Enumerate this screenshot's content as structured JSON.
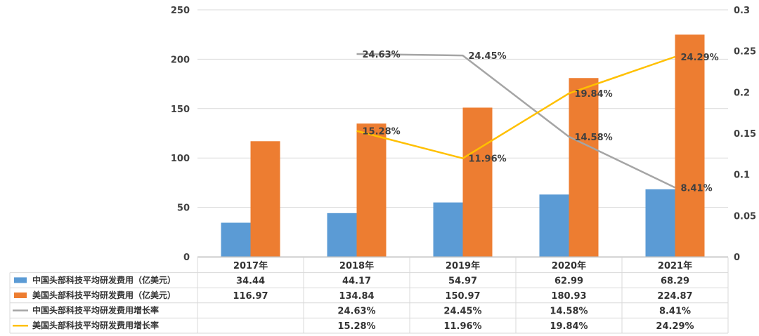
{
  "chart_data": {
    "type": "bar+line",
    "categories": [
      "2017年",
      "2018年",
      "2019年",
      "2020年",
      "2021年"
    ],
    "left_axis": {
      "ylim": [
        0,
        250
      ],
      "ticks": [
        "0",
        "50",
        "100",
        "150",
        "200",
        "250"
      ]
    },
    "right_axis": {
      "ylim": [
        0,
        0.3
      ],
      "ticks": [
        "0",
        "0.05",
        "0.1",
        "0.15",
        "0.2",
        "0.25",
        "0.3"
      ]
    },
    "series": [
      {
        "name": "中国头部科技平均研发费用（亿美元）",
        "kind": "bar",
        "axis": "left",
        "color": "#5B9BD5",
        "values": [
          34.44,
          44.17,
          54.97,
          62.99,
          68.29
        ],
        "table": [
          "34.44",
          "44.17",
          "54.97",
          "62.99",
          "68.29"
        ]
      },
      {
        "name": "美国头部科技平均研发费用（亿美元）",
        "kind": "bar",
        "axis": "left",
        "color": "#ED7D31",
        "values": [
          116.97,
          134.84,
          150.97,
          180.93,
          224.87
        ],
        "table": [
          "116.97",
          "134.84",
          "150.97",
          "180.93",
          "224.87"
        ]
      },
      {
        "name": "中国头部科技平均研发费用增长率",
        "kind": "line",
        "axis": "right",
        "color": "#A5A5A5",
        "values": [
          null,
          0.2463,
          0.2445,
          0.1458,
          0.0841
        ],
        "table": [
          "",
          "24.63%",
          "24.45%",
          "14.58%",
          "8.41%"
        ]
      },
      {
        "name": "美国头部科技平均研发费用增长率",
        "kind": "line",
        "axis": "right",
        "color": "#FFC000",
        "values": [
          null,
          0.1528,
          0.1196,
          0.1984,
          0.2429
        ],
        "table": [
          "",
          "15.28%",
          "11.96%",
          "19.84%",
          "24.29%"
        ]
      }
    ],
    "grid": true,
    "legend": "data-table-left"
  }
}
